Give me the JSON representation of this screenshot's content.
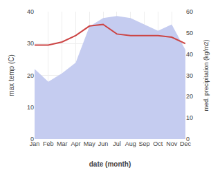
{
  "chart_data": {
    "type": "line",
    "categories": [
      "Jan",
      "Feb",
      "Mar",
      "Apr",
      "May",
      "Jun",
      "Jul",
      "Aug",
      "Sep",
      "Oct",
      "Nov",
      "Dec"
    ],
    "series": [
      {
        "type": "area",
        "color": "#c5ccf0",
        "axis": "y2",
        "values": [
          33,
          27,
          31,
          36,
          53,
          57,
          58,
          57,
          54,
          51,
          54,
          42
        ]
      },
      {
        "type": "line",
        "color": "#cc4444",
        "values": [
          29.5,
          29.5,
          30.5,
          32.5,
          35.5,
          36.0,
          33.0,
          32.5,
          32.5,
          32.5,
          32.0,
          30.0
        ]
      }
    ],
    "xlabel": "date (month)",
    "ylabel": "max temp (C)",
    "y2label": "med. precipitation (kg/m2)",
    "ylim": [
      0,
      40
    ],
    "yticks": [
      0,
      10,
      20,
      30,
      40
    ],
    "y2lim": [
      0,
      60
    ],
    "y2ticks": [
      0,
      10,
      20,
      30,
      40,
      50,
      60
    ],
    "grid": true
  }
}
